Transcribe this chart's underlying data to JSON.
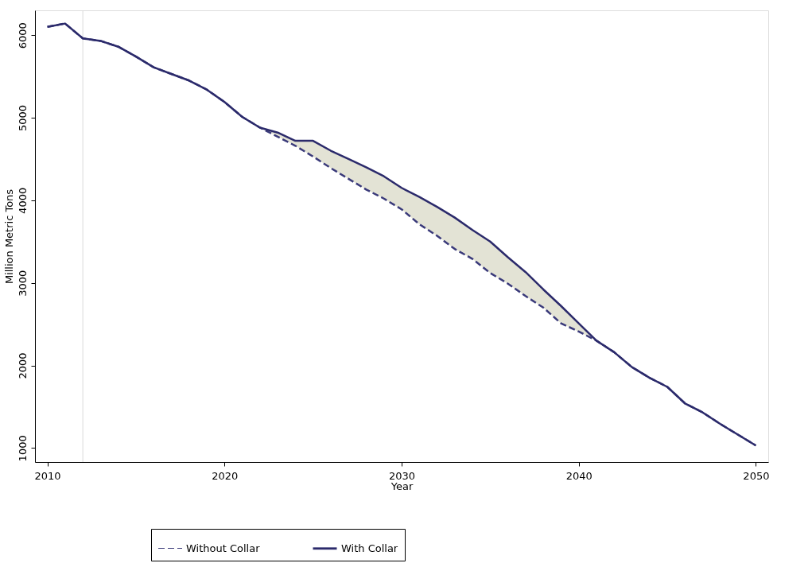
{
  "chart_data": {
    "type": "line",
    "xlabel": "Year",
    "ylabel": "Million Metric Tons",
    "x": [
      2010,
      2011,
      2012,
      2013,
      2014,
      2015,
      2016,
      2017,
      2018,
      2019,
      2020,
      2021,
      2022,
      2023,
      2024,
      2025,
      2026,
      2027,
      2028,
      2029,
      2030,
      2031,
      2032,
      2033,
      2034,
      2035,
      2036,
      2037,
      2038,
      2039,
      2040,
      2041,
      2042,
      2043,
      2044,
      2045,
      2046,
      2047,
      2048,
      2049,
      2050
    ],
    "xlim": [
      2009.3,
      2050.7
    ],
    "xticks": [
      2010,
      2020,
      2030,
      2040,
      2050
    ],
    "ylim": [
      830,
      6300
    ],
    "yticks": [
      1000,
      2000,
      3000,
      4000,
      5000,
      6000
    ],
    "series": [
      {
        "name": "Without Collar",
        "color": "#3a3a7a",
        "line_style": "dashed",
        "values": [
          6100,
          6140,
          5960,
          5930,
          5860,
          5740,
          5610,
          5530,
          5450,
          5340,
          5190,
          5010,
          4880,
          4770,
          4660,
          4530,
          4390,
          4260,
          4130,
          4020,
          3890,
          3710,
          3570,
          3410,
          3290,
          3120,
          2990,
          2840,
          2700,
          2510,
          2410,
          2300,
          2160,
          1980,
          1850,
          1740,
          1540,
          1430,
          1290,
          1160,
          1030
        ]
      },
      {
        "name": "With Collar",
        "color": "#2b2a6b",
        "line_style": "solid",
        "values": [
          6100,
          6140,
          5960,
          5930,
          5860,
          5740,
          5610,
          5530,
          5450,
          5340,
          5190,
          5010,
          4880,
          4820,
          4720,
          4720,
          4600,
          4500,
          4400,
          4290,
          4150,
          4040,
          3920,
          3790,
          3640,
          3500,
          3310,
          3130,
          2920,
          2720,
          2510,
          2300,
          2160,
          1980,
          1850,
          1740,
          1540,
          1430,
          1290,
          1160,
          1030
        ],
        "lower": [
          null,
          null,
          null,
          null,
          null,
          null,
          null,
          null,
          null,
          null,
          null,
          null,
          4880,
          4770,
          4660,
          4530,
          4390,
          4260,
          4130,
          4020,
          3890,
          3710,
          3570,
          3410,
          3290,
          3120,
          2990,
          2840,
          2700,
          2510,
          2410,
          2300,
          null,
          null,
          null,
          null,
          null,
          null,
          null,
          null,
          null
        ],
        "upper": [
          null,
          null,
          null,
          null,
          null,
          null,
          null,
          null,
          null,
          null,
          null,
          null,
          4880,
          4820,
          4720,
          4720,
          4600,
          4500,
          4400,
          4290,
          4150,
          4040,
          3920,
          3790,
          3640,
          3500,
          3310,
          3130,
          2920,
          2720,
          2510,
          2300,
          null,
          null,
          null,
          null,
          null,
          null,
          null,
          null,
          null
        ]
      }
    ],
    "ref_lines": [
      {
        "axis": "x",
        "value": 2012,
        "color": "#d9d9d9"
      }
    ],
    "legend": "bottom",
    "grid": false
  }
}
